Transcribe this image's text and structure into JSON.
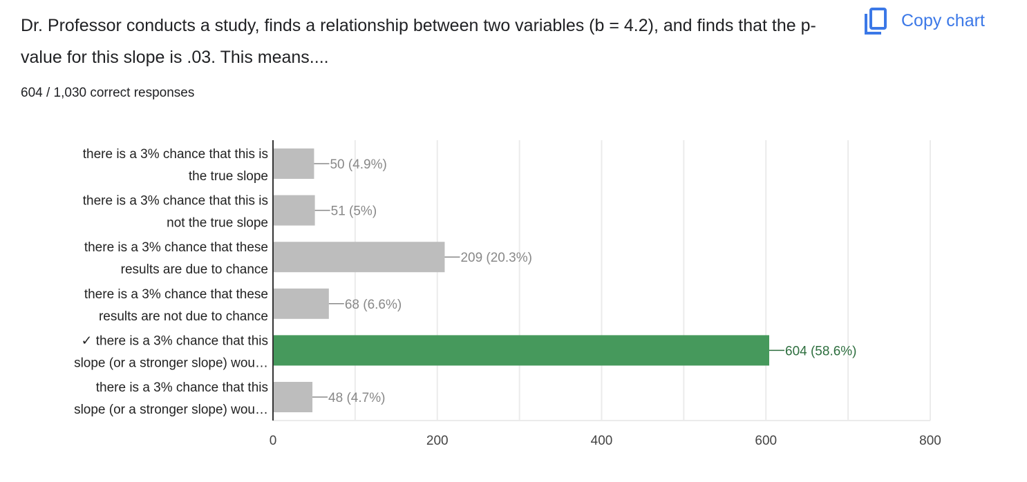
{
  "question": "Dr. Professor conducts a study, finds a relationship between two variables (b = 4.2), and finds that the p-value for this slope is .03. This means....",
  "summary": "604 / 1,030 correct responses",
  "copy_label": "Copy chart",
  "copy_icon": "copy-icon",
  "colors": {
    "bar": "#bdbdbd",
    "correct": "#46995c",
    "correct_label": "#2d6e3e",
    "label": "#888888",
    "accent": "#3b78e7"
  },
  "chart_data": {
    "type": "bar",
    "orientation": "horizontal",
    "categories": [
      [
        "there is a 3% chance that this is",
        "the true slope"
      ],
      [
        "there is a 3% chance that this is",
        "not the true slope"
      ],
      [
        "there is a 3% chance that these",
        "results are due to chance"
      ],
      [
        "there is a 3% chance that these",
        "results are not due to chance"
      ],
      [
        "✓ there is a 3% chance that this",
        "slope (or a stronger slope) wou…"
      ],
      [
        "there is a 3% chance that this",
        "slope (or a stronger slope) wou…"
      ]
    ],
    "values": [
      50,
      51,
      209,
      68,
      604,
      48
    ],
    "data_labels": [
      "50 (4.9%)",
      "51 (5%)",
      "209 (20.3%)",
      "68 (6.6%)",
      "604 (58.6%)",
      "48 (4.7%)"
    ],
    "correct_index": 4,
    "xlim": [
      0,
      800
    ],
    "xticks": [
      0,
      200,
      400,
      600,
      800
    ],
    "grid_step": 100,
    "grid": true
  }
}
